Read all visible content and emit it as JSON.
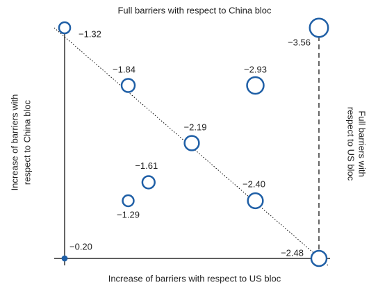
{
  "chart_data": {
    "type": "bubble",
    "top_label": "Full barriers with respect to China bloc",
    "bottom_label": "Increase of barriers with respect to US bloc",
    "left_label": [
      "Increase of barriers with",
      "respect to China bloc"
    ],
    "right_label": [
      "Full barriers with",
      "respect to US bloc"
    ],
    "x": [
      0,
      0,
      1,
      1,
      0.25,
      0.75,
      0.5,
      0.33,
      0.25,
      0.75
    ],
    "y": [
      0,
      1,
      1,
      0,
      0.75,
      0.75,
      0.5,
      0.33,
      0.25,
      0.25
    ],
    "values": [
      -0.2,
      -1.32,
      -3.56,
      -2.48,
      -1.84,
      -2.93,
      -2.19,
      -1.61,
      -1.29,
      -2.4
    ],
    "value_labels": [
      "−0.20",
      "−1.32",
      "−3.56",
      "−2.48",
      "−1.84",
      "−2.93",
      "−2.19",
      "−1.61",
      "−1.29",
      "−2.40"
    ],
    "color": "#1f5fa6",
    "xlim": [
      0,
      1
    ],
    "ylim": [
      0,
      1
    ]
  }
}
